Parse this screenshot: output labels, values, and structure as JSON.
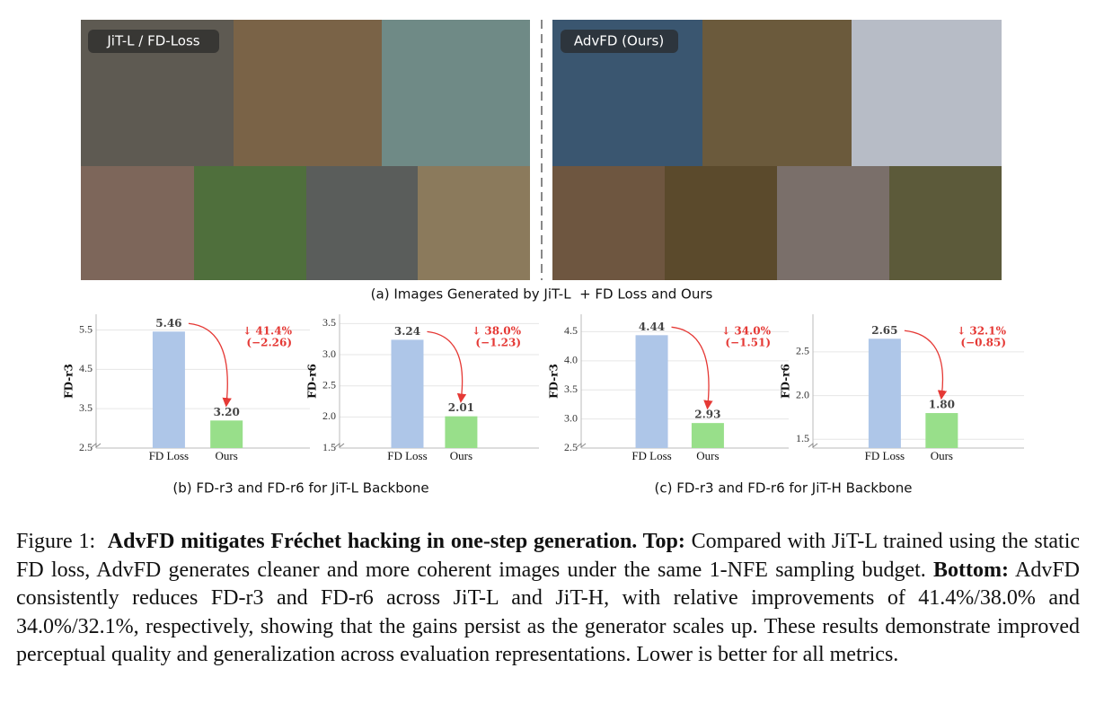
{
  "panel_a": {
    "left_label": "JiT-L / FD-Loss",
    "right_label": "AdvFD (Ours)",
    "caption": "(a) Images Generated by JiT-L  + FD Loss and Ours"
  },
  "chart_data": [
    {
      "type": "bar",
      "y_label": "FD-r3",
      "categories": [
        "FD Loss",
        "Ours"
      ],
      "values": [
        5.46,
        3.2
      ],
      "value_labels": [
        "5.46",
        "3.20"
      ],
      "colors": [
        "#aec6e8",
        "#98df8a"
      ],
      "ylim": [
        2.5,
        5.9
      ],
      "yticks": [
        2.5,
        3.5,
        4.5,
        5.5
      ],
      "annotation": [
        "↓ 41.4%",
        "(−2.26)"
      ],
      "grid": true
    },
    {
      "type": "bar",
      "y_label": "FD-r6",
      "categories": [
        "FD Loss",
        "Ours"
      ],
      "values": [
        3.24,
        2.01
      ],
      "value_labels": [
        "3.24",
        "2.01"
      ],
      "colors": [
        "#aec6e8",
        "#98df8a"
      ],
      "ylim": [
        1.5,
        3.65
      ],
      "yticks": [
        1.5,
        {
          "value": 2,
          "label": "2.0"
        },
        2.5,
        {
          "value": 3,
          "label": "3.0"
        },
        3.5
      ],
      "annotation": [
        "↓ 38.0%",
        "(−1.23)"
      ],
      "grid": true
    },
    {
      "type": "bar",
      "y_label": "FD-r3",
      "categories": [
        "FD Loss",
        "Ours"
      ],
      "values": [
        4.44,
        2.93
      ],
      "value_labels": [
        "4.44",
        "2.93"
      ],
      "colors": [
        "#aec6e8",
        "#98df8a"
      ],
      "ylim": [
        2.5,
        4.8
      ],
      "yticks": [
        2.5,
        {
          "value": 3,
          "label": "3.0"
        },
        3.5,
        {
          "value": 4,
          "label": "4.0"
        },
        4.5
      ],
      "annotation": [
        "↓ 34.0%",
        "(−1.51)"
      ],
      "grid": true
    },
    {
      "type": "bar",
      "y_label": "FD-r6",
      "categories": [
        "FD Loss",
        "Ours"
      ],
      "values": [
        2.65,
        1.8
      ],
      "value_labels": [
        "2.65",
        "1.80"
      ],
      "colors": [
        "#aec6e8",
        "#98df8a"
      ],
      "ylim": [
        1.4,
        2.93
      ],
      "yticks": [
        1.5,
        {
          "value": 2,
          "label": "2.0"
        },
        2.5
      ],
      "annotation": [
        "↓ 32.1%",
        "(−0.85)"
      ],
      "grid": true
    }
  ],
  "subcaptions": [
    "(b) FD-r3 and FD-r6 for JiT-L Backbone",
    "(c) FD-r3 and FD-r6 for JiT-H Backbone"
  ],
  "caption": {
    "label": "Figure 1:",
    "bold1": "AdvFD mitigates Fréchet hacking in one-step generation. Top:",
    "text1": "Compared with JiT-L trained using the static FD loss, AdvFD generates cleaner and more coherent images under the same 1-NFE sampling budget.",
    "bold2": "Bottom:",
    "text2": "AdvFD consistently reduces FD-r3 and FD-r6 across JiT-L and JiT-H, with relative improvements of 41.4%/38.0% and 34.0%/32.1%, respectively, showing that the gains persist as the generator scales up. These results demonstrate improved perceptual quality and generalization across evaluation representations. Lower is better for all metrics."
  }
}
